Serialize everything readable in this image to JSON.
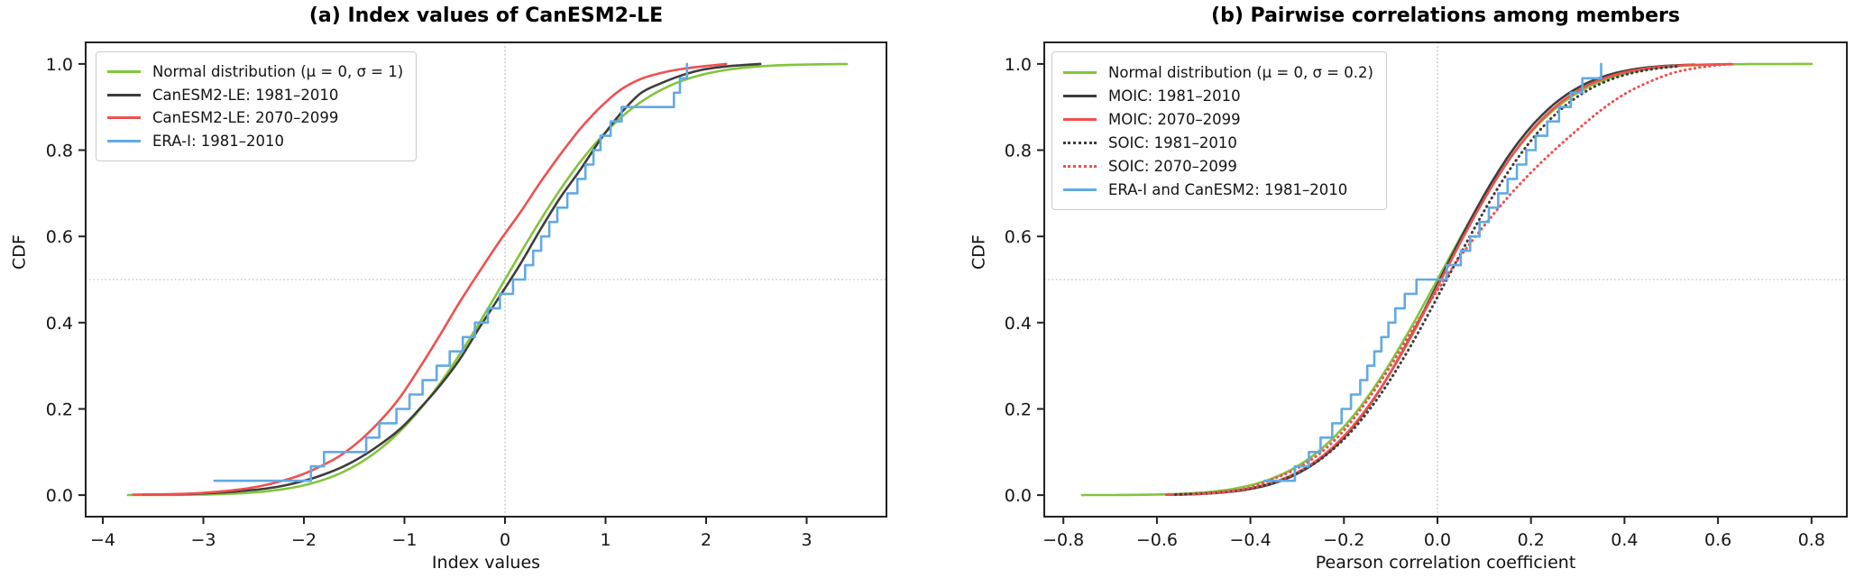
{
  "figure_background": "#ffffff",
  "axis_color": "#222222",
  "ref_line_color": "#aaaaaa",
  "chart_data": [
    {
      "type": "line",
      "panel": "a",
      "title": "(a) Index values of CanESM2-LE",
      "xlabel": "Index values",
      "ylabel": "CDF",
      "xlim": [
        -4.17,
        3.79
      ],
      "ylim": [
        -0.05,
        1.05
      ],
      "grid": false,
      "legend_position": "upper left",
      "x_ticks": [
        {
          "v": -4,
          "label": "−4"
        },
        {
          "v": -3,
          "label": "−3"
        },
        {
          "v": -2,
          "label": "−2"
        },
        {
          "v": -1,
          "label": "−1"
        },
        {
          "v": 0,
          "label": "0"
        },
        {
          "v": 1,
          "label": "1"
        },
        {
          "v": 2,
          "label": "2"
        },
        {
          "v": 3,
          "label": "3"
        }
      ],
      "y_ticks": [
        {
          "v": 0.0,
          "label": "0.0"
        },
        {
          "v": 0.2,
          "label": "0.2"
        },
        {
          "v": 0.4,
          "label": "0.4"
        },
        {
          "v": 0.6,
          "label": "0.6"
        },
        {
          "v": 0.8,
          "label": "0.8"
        },
        {
          "v": 1.0,
          "label": "1.0"
        }
      ],
      "ref_lines": {
        "horizontal_cdf": 0.5,
        "vertical_x": 0
      },
      "series": [
        {
          "name": "Normal distribution (μ = 0, σ = 1)",
          "color": "#82c53c",
          "line": "solid",
          "curve": {
            "kind": "normal_cdf",
            "mu": 0,
            "sigma": 1,
            "x_range": [
              -3.75,
              3.4
            ]
          }
        },
        {
          "name": "CanESM2-LE: 1981–2010",
          "color": "#3d3d3d",
          "line": "solid",
          "curve": {
            "kind": "empirical_cdf_points",
            "points": [
              [
                -3.6,
                0.001
              ],
              [
                -3.1,
                0.003
              ],
              [
                -2.7,
                0.008
              ],
              [
                -2.35,
                0.016
              ],
              [
                -2.05,
                0.03
              ],
              [
                -1.8,
                0.048
              ],
              [
                -1.55,
                0.073
              ],
              [
                -1.3,
                0.108
              ],
              [
                -1.05,
                0.152
              ],
              [
                -0.85,
                0.2
              ],
              [
                -0.65,
                0.253
              ],
              [
                -0.45,
                0.315
              ],
              [
                -0.25,
                0.39
              ],
              [
                -0.05,
                0.462
              ],
              [
                0.15,
                0.535
              ],
              [
                0.35,
                0.615
              ],
              [
                0.55,
                0.69
              ],
              [
                0.75,
                0.755
              ],
              [
                0.95,
                0.825
              ],
              [
                1.15,
                0.885
              ],
              [
                1.35,
                0.932
              ],
              [
                1.55,
                0.955
              ],
              [
                1.75,
                0.973
              ],
              [
                1.95,
                0.986
              ],
              [
                2.15,
                0.993
              ],
              [
                2.35,
                0.997
              ],
              [
                2.54,
                1.0
              ]
            ]
          }
        },
        {
          "name": "CanESM2-LE: 2070–2099",
          "color": "#ef5050",
          "line": "solid",
          "curve": {
            "kind": "empirical_cdf_points",
            "points": [
              [
                -3.7,
                0.001
              ],
              [
                -3.2,
                0.003
              ],
              [
                -2.85,
                0.008
              ],
              [
                -2.55,
                0.016
              ],
              [
                -2.3,
                0.028
              ],
              [
                -2.05,
                0.045
              ],
              [
                -1.85,
                0.065
              ],
              [
                -1.65,
                0.09
              ],
              [
                -1.45,
                0.125
              ],
              [
                -1.25,
                0.17
              ],
              [
                -1.05,
                0.225
              ],
              [
                -0.85,
                0.295
              ],
              [
                -0.65,
                0.37
              ],
              [
                -0.45,
                0.448
              ],
              [
                -0.25,
                0.52
              ],
              [
                -0.05,
                0.59
              ],
              [
                0.15,
                0.655
              ],
              [
                0.35,
                0.725
              ],
              [
                0.55,
                0.79
              ],
              [
                0.75,
                0.85
              ],
              [
                0.95,
                0.9
              ],
              [
                1.15,
                0.94
              ],
              [
                1.35,
                0.965
              ],
              [
                1.55,
                0.979
              ],
              [
                1.75,
                0.988
              ],
              [
                1.95,
                0.994
              ],
              [
                2.2,
                1.0
              ]
            ]
          }
        },
        {
          "name": "ERA-I: 1981–2010",
          "color": "#61aae6",
          "line": "step",
          "curve": {
            "kind": "empirical_step",
            "samples": [
              -2.89,
              -1.93,
              -1.8,
              -1.38,
              -1.25,
              -1.08,
              -0.95,
              -0.82,
              -0.68,
              -0.55,
              -0.42,
              -0.3,
              -0.17,
              -0.05,
              0.08,
              0.2,
              0.28,
              0.36,
              0.44,
              0.52,
              0.62,
              0.72,
              0.8,
              0.88,
              0.95,
              1.05,
              1.16,
              1.68,
              1.74,
              1.81
            ]
          }
        }
      ]
    },
    {
      "type": "line",
      "panel": "b",
      "title": "(b) Pairwise correlations among members",
      "xlabel": "Pearson correlation coefficient",
      "ylabel": "CDF",
      "xlim": [
        -0.841,
        0.876
      ],
      "ylim": [
        -0.05,
        1.05
      ],
      "grid": false,
      "legend_position": "upper left",
      "x_ticks": [
        {
          "v": -0.8,
          "label": "−0.8"
        },
        {
          "v": -0.6,
          "label": "−0.6"
        },
        {
          "v": -0.4,
          "label": "−0.4"
        },
        {
          "v": -0.2,
          "label": "−0.2"
        },
        {
          "v": 0.0,
          "label": "0.0"
        },
        {
          "v": 0.2,
          "label": "0.2"
        },
        {
          "v": 0.4,
          "label": "0.4"
        },
        {
          "v": 0.6,
          "label": "0.6"
        },
        {
          "v": 0.8,
          "label": "0.8"
        }
      ],
      "y_ticks": [
        {
          "v": 0.0,
          "label": "0.0"
        },
        {
          "v": 0.2,
          "label": "0.2"
        },
        {
          "v": 0.4,
          "label": "0.4"
        },
        {
          "v": 0.6,
          "label": "0.6"
        },
        {
          "v": 0.8,
          "label": "0.8"
        },
        {
          "v": 1.0,
          "label": "1.0"
        }
      ],
      "ref_lines": {
        "horizontal_cdf": 0.5,
        "vertical_x": 0
      },
      "series": [
        {
          "name": "Normal distribution (μ = 0, σ = 0.2)",
          "color": "#82c53c",
          "line": "solid",
          "curve": {
            "kind": "normal_cdf",
            "mu": 0,
            "sigma": 0.2,
            "x_range": [
              -0.76,
              0.8
            ]
          }
        },
        {
          "name": "MOIC: 1981–2010",
          "color": "#3d3d3d",
          "line": "solid",
          "curve": {
            "kind": "normal_cdf",
            "mu": 0.005,
            "sigma": 0.185,
            "x_range": [
              -0.58,
              0.55
            ]
          }
        },
        {
          "name": "MOIC: 2070–2099",
          "color": "#ef5050",
          "line": "solid",
          "curve": {
            "kind": "normal_cdf",
            "mu": 0.008,
            "sigma": 0.19,
            "x_range": [
              -0.58,
              0.63
            ]
          }
        },
        {
          "name": "SOIC: 1981–2010",
          "color": "#3d3d3d",
          "line": "dotted",
          "curve": {
            "kind": "normal_cdf",
            "mu": 0.02,
            "sigma": 0.195,
            "x_range": [
              -0.56,
              0.52
            ]
          }
        },
        {
          "name": "SOIC: 2070–2099",
          "color": "#ef5050",
          "line": "dotted",
          "curve": {
            "kind": "empirical_cdf_points",
            "points": [
              [
                -0.52,
                0.002
              ],
              [
                -0.45,
                0.008
              ],
              [
                -0.4,
                0.018
              ],
              [
                -0.35,
                0.038
              ],
              [
                -0.3,
                0.062
              ],
              [
                -0.25,
                0.098
              ],
              [
                -0.2,
                0.15
              ],
              [
                -0.15,
                0.22
              ],
              [
                -0.1,
                0.3
              ],
              [
                -0.05,
                0.39
              ],
              [
                0.0,
                0.475
              ],
              [
                0.05,
                0.555
              ],
              [
                0.1,
                0.625
              ],
              [
                0.15,
                0.69
              ],
              [
                0.2,
                0.748
              ],
              [
                0.25,
                0.8
              ],
              [
                0.3,
                0.848
              ],
              [
                0.35,
                0.893
              ],
              [
                0.4,
                0.93
              ],
              [
                0.45,
                0.957
              ],
              [
                0.5,
                0.978
              ],
              [
                0.55,
                0.99
              ],
              [
                0.6,
                0.997
              ],
              [
                0.63,
                1.0
              ]
            ]
          }
        },
        {
          "name": "ERA-I and CanESM2: 1981–2010",
          "color": "#61aae6",
          "line": "step",
          "curve": {
            "kind": "empirical_step",
            "samples": [
              -0.37,
              -0.305,
              -0.275,
              -0.25,
              -0.225,
              -0.205,
              -0.185,
              -0.165,
              -0.15,
              -0.135,
              -0.12,
              -0.105,
              -0.09,
              -0.07,
              -0.045,
              0.02,
              0.05,
              0.07,
              0.09,
              0.11,
              0.13,
              0.15,
              0.17,
              0.19,
              0.21,
              0.235,
              0.26,
              0.285,
              0.31,
              0.35
            ]
          }
        }
      ]
    }
  ]
}
